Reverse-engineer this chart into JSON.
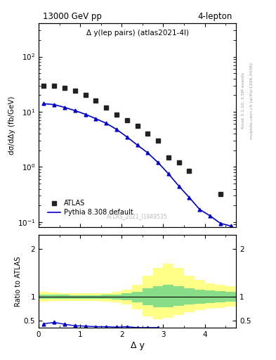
{
  "title_left": "13000 GeV pp",
  "title_right": "4-lepton",
  "plot_label": "Δ y(lep pairs) (atlas2021-4l)",
  "watermark": "ATLAS_2021_I1849535",
  "right_label": "Rivet 3.1.10, 3.5M events",
  "right_label2": "mcplots.cern.ch [arXiv:1306.3436]",
  "ylabel_main": "dσ/dΔy (fb/GeV)",
  "ylabel_ratio": "Ratio to ATLAS",
  "xlabel": "Δ y",
  "atlas_x": [
    0.125,
    0.375,
    0.625,
    0.875,
    1.125,
    1.375,
    1.625,
    1.875,
    2.125,
    2.375,
    2.625,
    2.875,
    3.125,
    3.375,
    3.625,
    4.375
  ],
  "atlas_y": [
    30.0,
    30.0,
    27.0,
    24.0,
    20.0,
    16.0,
    12.0,
    9.0,
    7.0,
    5.5,
    4.0,
    3.0,
    1.5,
    1.2,
    0.85,
    0.32
  ],
  "pythia_x": [
    0.125,
    0.375,
    0.625,
    0.875,
    1.125,
    1.375,
    1.625,
    1.875,
    2.125,
    2.375,
    2.625,
    2.875,
    3.125,
    3.375,
    3.625,
    3.875,
    4.125,
    4.375,
    4.625
  ],
  "pythia_y": [
    14.0,
    13.5,
    12.0,
    10.5,
    9.0,
    7.5,
    6.2,
    4.8,
    3.5,
    2.5,
    1.8,
    1.2,
    0.75,
    0.45,
    0.28,
    0.17,
    0.13,
    0.095,
    0.085
  ],
  "ratio_pythia_x": [
    0.125,
    0.375,
    0.625,
    0.875,
    1.125,
    1.375,
    1.625,
    1.875,
    2.125,
    2.375,
    2.625,
    2.875
  ],
  "ratio_pythia_y": [
    0.43,
    0.46,
    0.42,
    0.39,
    0.38,
    0.37,
    0.37,
    0.36,
    0.37,
    0.35,
    0.35,
    0.35
  ],
  "atlas_color": "#222222",
  "pythia_color": "#0000cc",
  "band_yellow_edges": [
    0.0,
    0.25,
    0.5,
    0.75,
    1.0,
    1.25,
    1.5,
    1.75,
    2.0,
    2.25,
    2.5,
    2.75,
    3.0,
    3.25,
    3.5,
    3.75,
    4.0,
    4.25,
    4.5,
    4.75,
    5.0
  ],
  "band_yellow_upper": [
    1.1,
    1.09,
    1.08,
    1.07,
    1.07,
    1.07,
    1.08,
    1.1,
    1.15,
    1.25,
    1.45,
    1.6,
    1.7,
    1.6,
    1.45,
    1.35,
    1.28,
    1.25,
    1.22,
    1.2,
    1.2
  ],
  "band_yellow_lower": [
    0.9,
    0.91,
    0.91,
    0.91,
    0.91,
    0.91,
    0.9,
    0.88,
    0.83,
    0.73,
    0.58,
    0.52,
    0.55,
    0.62,
    0.68,
    0.72,
    0.75,
    0.77,
    0.79,
    0.8,
    0.8
  ],
  "band_green_edges": [
    0.0,
    0.25,
    0.5,
    0.75,
    1.0,
    1.25,
    1.5,
    1.75,
    2.0,
    2.25,
    2.5,
    2.75,
    3.0,
    3.25,
    3.5,
    3.75,
    4.0,
    4.25,
    4.5,
    4.75,
    5.0
  ],
  "band_green_upper": [
    1.04,
    1.04,
    1.04,
    1.03,
    1.03,
    1.03,
    1.04,
    1.05,
    1.07,
    1.11,
    1.18,
    1.22,
    1.25,
    1.22,
    1.18,
    1.15,
    1.13,
    1.12,
    1.11,
    1.1,
    1.1
  ],
  "band_green_lower": [
    0.96,
    0.96,
    0.96,
    0.96,
    0.96,
    0.96,
    0.95,
    0.94,
    0.92,
    0.88,
    0.82,
    0.78,
    0.78,
    0.8,
    0.83,
    0.85,
    0.87,
    0.88,
    0.89,
    0.9,
    0.9
  ],
  "ylim_main": [
    0.08,
    400
  ],
  "ylim_ratio": [
    0.35,
    2.3
  ],
  "xlim": [
    0.0,
    4.75
  ],
  "yticks_ratio": [
    0.5,
    1.0,
    2.0
  ],
  "ytick_labels_ratio": [
    "0.5",
    "1",
    "2"
  ]
}
